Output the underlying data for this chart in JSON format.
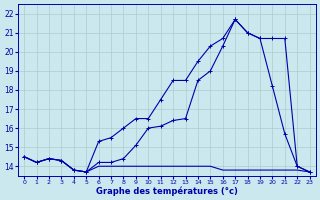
{
  "xlabel": "Graphe des températures (°c)",
  "bg_color": "#cce8ef",
  "grid_color": "#aacccc",
  "line_color": "#0000aa",
  "xlim": [
    -0.5,
    23.5
  ],
  "ylim": [
    13.5,
    22.5
  ],
  "x_ticks": [
    0,
    1,
    2,
    3,
    4,
    5,
    6,
    7,
    8,
    9,
    10,
    11,
    12,
    13,
    14,
    15,
    16,
    17,
    18,
    19,
    20,
    21,
    22,
    23
  ],
  "y_ticks": [
    14,
    15,
    16,
    17,
    18,
    19,
    20,
    21,
    22
  ],
  "line1_x": [
    0,
    1,
    2,
    3,
    4,
    5,
    6,
    7,
    8,
    9,
    10,
    11,
    12,
    13,
    14,
    15,
    16,
    17,
    18,
    19,
    20,
    21,
    22,
    23
  ],
  "line1_y": [
    14.5,
    14.2,
    14.4,
    14.3,
    13.8,
    13.7,
    14.2,
    14.2,
    14.4,
    15.1,
    16.0,
    16.1,
    16.4,
    16.5,
    18.5,
    19.0,
    20.3,
    21.7,
    21.0,
    20.7,
    18.2,
    15.7,
    14.0,
    13.7
  ],
  "line2_x": [
    0,
    1,
    2,
    3,
    4,
    5,
    6,
    7,
    8,
    9,
    10,
    11,
    12,
    13,
    14,
    15,
    16,
    17,
    18,
    19,
    20,
    21,
    22,
    23
  ],
  "line2_y": [
    14.5,
    14.2,
    14.4,
    14.3,
    13.8,
    13.7,
    15.3,
    15.5,
    16.0,
    16.5,
    16.5,
    17.5,
    18.5,
    18.5,
    19.5,
    20.3,
    20.7,
    21.7,
    21.0,
    20.7,
    20.7,
    20.7,
    14.0,
    13.7
  ],
  "line3_x": [
    0,
    1,
    2,
    3,
    4,
    5,
    6,
    7,
    8,
    9,
    10,
    11,
    12,
    13,
    14,
    15,
    16,
    17,
    18,
    19,
    20,
    21,
    22,
    23
  ],
  "line3_y": [
    14.5,
    14.2,
    14.4,
    14.3,
    13.8,
    13.7,
    14.0,
    14.0,
    14.0,
    14.0,
    14.0,
    14.0,
    14.0,
    14.0,
    14.0,
    14.0,
    13.8,
    13.8,
    13.8,
    13.8,
    13.8,
    13.8,
    13.8,
    13.7
  ]
}
